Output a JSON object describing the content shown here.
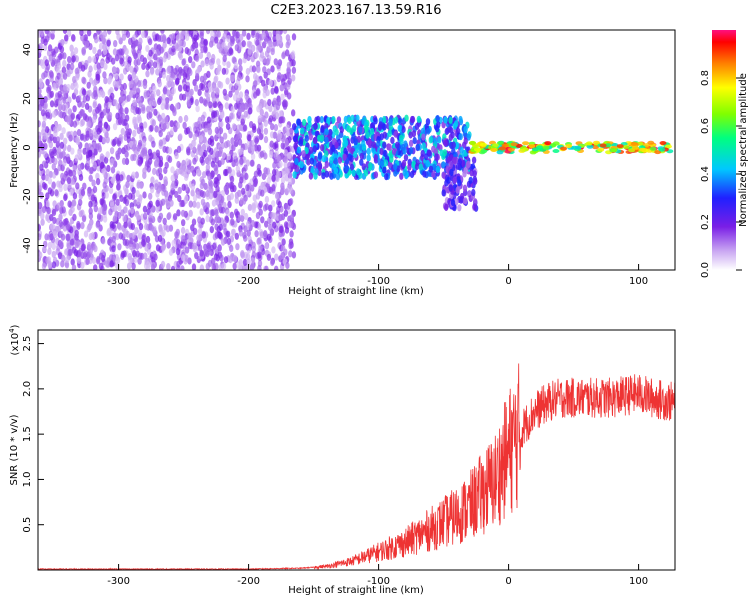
{
  "title": "C2E3.2023.167.13.59.R16",
  "colors": {
    "snr_line": "#ee3333",
    "axis": "#000000"
  },
  "chart_data": [
    {
      "type": "heatmap",
      "xlabel": "Height of straight line (km)",
      "ylabel": "Frequency (Hz)",
      "xlim": [
        -362,
        128
      ],
      "ylim": [
        -50,
        48
      ],
      "xticks": [
        -300,
        -200,
        -100,
        0,
        100
      ],
      "yticks": [
        -40,
        -20,
        0,
        20,
        40
      ],
      "colorbar": {
        "label": "Normalized spectral amplitude",
        "range": [
          0.0,
          1.0
        ],
        "ticks": [
          0.0,
          0.2,
          0.4,
          0.6,
          0.8
        ],
        "tick_labels": [
          "0.0",
          "0.2",
          "0.4",
          "0.6",
          "0.8"
        ]
      },
      "features": [
        {
          "region": "noise",
          "x_range": [
            -362,
            -165
          ],
          "y_range": [
            -50,
            48
          ],
          "amplitude": 0.15
        },
        {
          "region": "broad signal",
          "x_range": [
            -165,
            -30
          ],
          "y_range": [
            -12,
            12
          ],
          "amplitude": 0.4
        },
        {
          "region": "tail",
          "x_range": [
            -50,
            -25
          ],
          "y_range": [
            -25,
            -5
          ],
          "amplitude": 0.25
        },
        {
          "region": "carrier",
          "x_range": [
            -30,
            128
          ],
          "y_range": [
            -2,
            2
          ],
          "amplitude": 0.9
        }
      ]
    },
    {
      "type": "line",
      "xlabel": "Height of straight line (km)",
      "ylabel": "SNR (10 * v/v)",
      "y_multiplier": "(x10",
      "y_multiplier_exp": "4",
      "y_multiplier_close": ")",
      "xlim": [
        -362,
        128
      ],
      "ylim": [
        0,
        2.65
      ],
      "xticks": [
        -300,
        -200,
        -100,
        0,
        100
      ],
      "yticks": [
        0.5,
        1.0,
        1.5,
        2.0,
        2.5
      ],
      "ytick_labels": [
        "0.5",
        "1.0",
        "1.5",
        "2.0",
        "2.5"
      ],
      "series": [
        {
          "x": [
            -362,
            -300,
            -200,
            -160,
            -140,
            -120,
            -100,
            -80,
            -60,
            -40,
            -30,
            -20,
            -10,
            0,
            10,
            20,
            30,
            40,
            60,
            80,
            100,
            110,
            128
          ],
          "y": [
            0.01,
            0.01,
            0.01,
            0.02,
            0.04,
            0.1,
            0.2,
            0.3,
            0.45,
            0.6,
            0.7,
            0.85,
            1.0,
            1.3,
            1.55,
            1.75,
            1.85,
            1.9,
            1.9,
            1.9,
            1.95,
            1.9,
            1.85
          ]
        }
      ]
    }
  ]
}
